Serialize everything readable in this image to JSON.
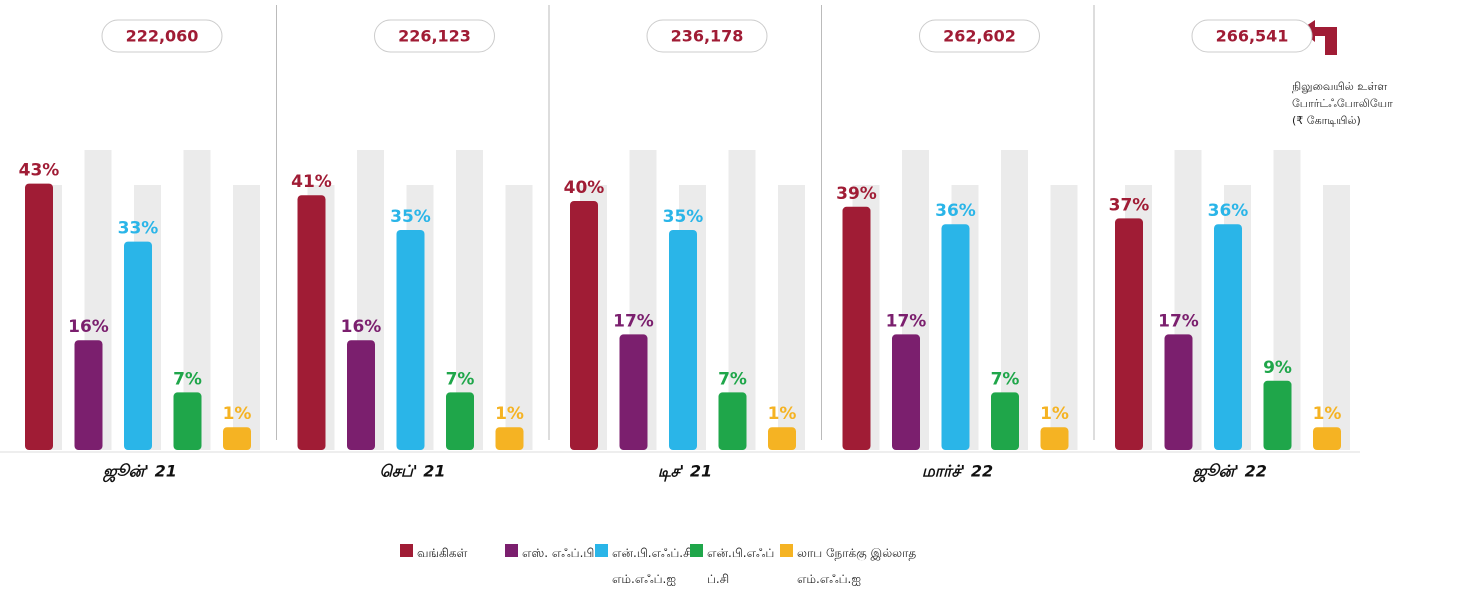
{
  "chart_data": {
    "type": "bar",
    "categories": [
      "ஜூன்' 21",
      "செப்' 21",
      "டிச' 21",
      "மார்ச்' 22",
      "ஜூன்' 22"
    ],
    "totals": [
      222060,
      226123,
      236178,
      262602,
      266541
    ],
    "total_labels": [
      "222,060",
      "226,123",
      "236,178",
      "262,602",
      "266,541"
    ],
    "annotation": "நிலுவையில் உள்ள போர்ட்ஃபோலியோ (₹ கோடியில்)",
    "series": [
      {
        "name": "வங்கிகள்",
        "color": "#a01c35",
        "values": [
          43,
          41,
          40,
          39,
          37
        ],
        "value_labels": [
          "43%",
          "41%",
          "40%",
          "39%",
          "37%"
        ]
      },
      {
        "name": "எஸ். எஃப்.பி",
        "color": "#7b1f6e",
        "values": [
          16,
          16,
          17,
          17,
          17
        ],
        "value_labels": [
          "16%",
          "16%",
          "17%",
          "17%",
          "17%"
        ]
      },
      {
        "name": "என்.பி.எஃப்.சி- எம்.எஃப்.ஐ",
        "color": "#2ab5e8",
        "values": [
          33,
          35,
          35,
          36,
          36
        ],
        "value_labels": [
          "33%",
          "35%",
          "35%",
          "36%",
          "36%"
        ]
      },
      {
        "name": "என்.பி.எஃப் ப்.சி",
        "color": "#1fa64a",
        "values": [
          7,
          7,
          7,
          7,
          9
        ],
        "value_labels": [
          "7%",
          "7%",
          "7%",
          "7%",
          "9%"
        ]
      },
      {
        "name": "லாப நோக்கு இல்லாத எம்.எஃப்.ஐ",
        "color": "#f5b323",
        "values": [
          1,
          1,
          1,
          1,
          1
        ],
        "value_labels": [
          "1%",
          "1%",
          "1%",
          "1%",
          "1%"
        ]
      }
    ]
  }
}
